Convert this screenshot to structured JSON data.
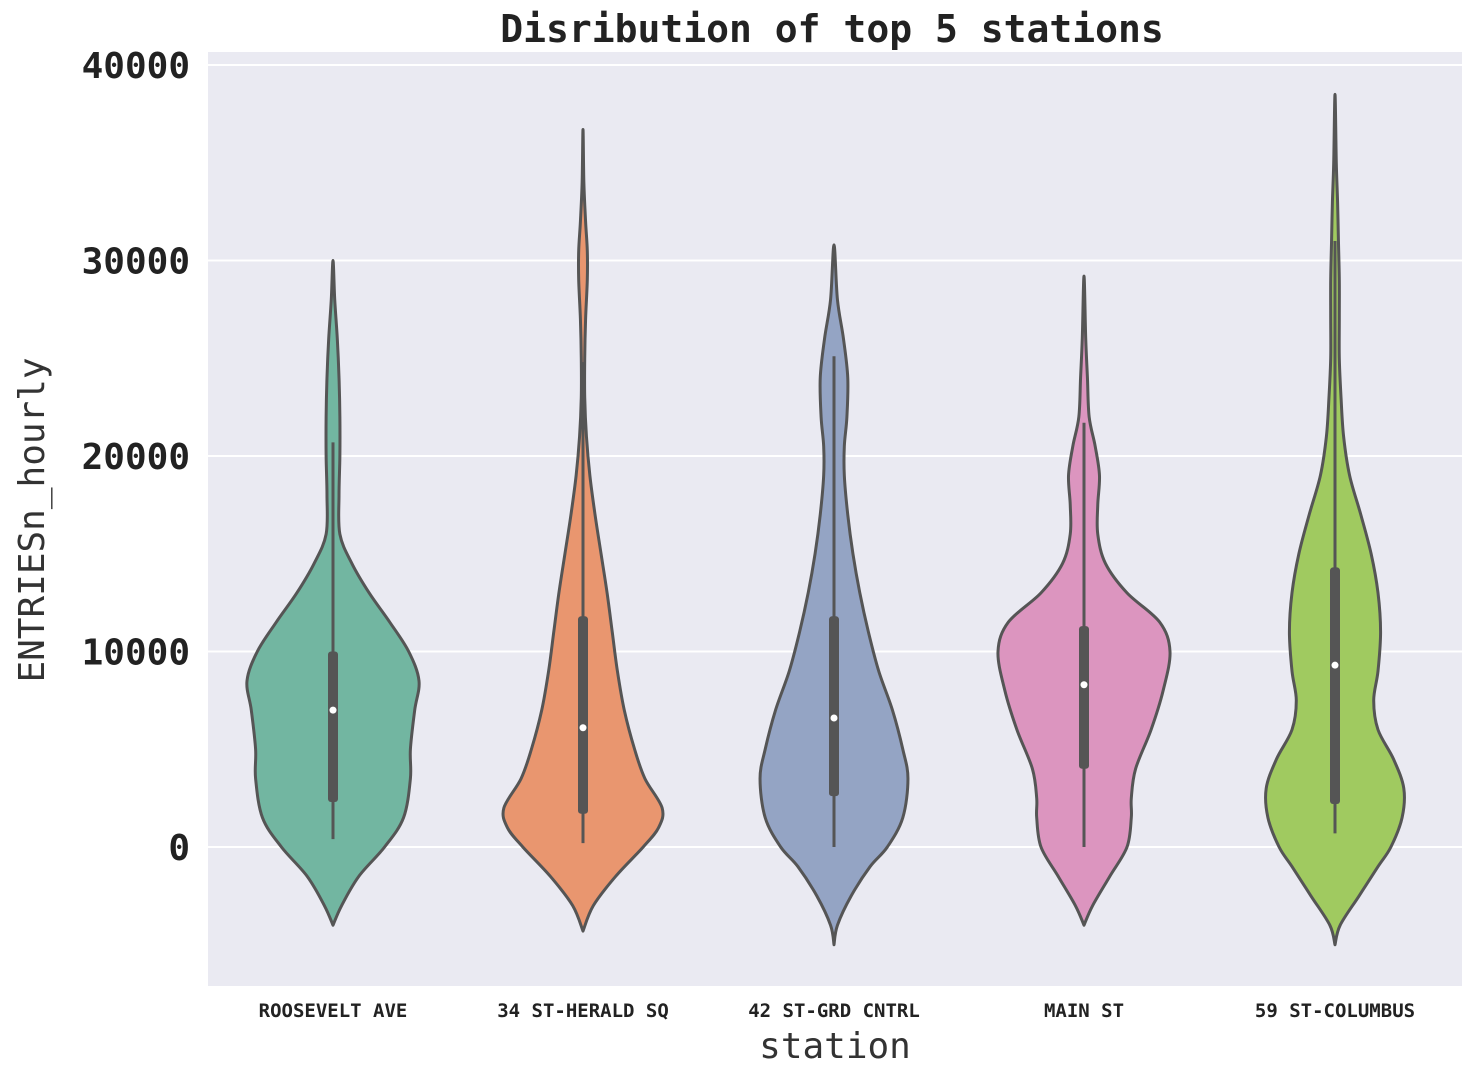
{
  "chart_data": {
    "type": "violin",
    "title": "Disribution of top 5 stations",
    "xlabel": "station",
    "ylabel": "ENTRIESn_hourly",
    "ylim": [
      -7000,
      40500
    ],
    "yticks": [
      0,
      10000,
      20000,
      30000,
      40000
    ],
    "grid": true,
    "categories": [
      "ROOSEVELT AVE",
      "34 ST-HERALD SQ",
      "42 ST-GRD CNTRL",
      "MAIN ST",
      "59 ST-COLUMBUS"
    ],
    "series": [
      {
        "category": "ROOSEVELT AVE",
        "color": "#72b6a1",
        "median": 7000,
        "q1": 2300,
        "q3": 10000,
        "whisker_low": 400,
        "whisker_high": 20700,
        "density": [
          [
            -4000,
            0.0
          ],
          [
            -3000,
            0.1
          ],
          [
            -1500,
            0.3
          ],
          [
            0,
            0.6
          ],
          [
            1500,
            0.82
          ],
          [
            3500,
            0.9
          ],
          [
            5000,
            0.9
          ],
          [
            7000,
            0.95
          ],
          [
            8500,
            1.0
          ],
          [
            10000,
            0.88
          ],
          [
            11500,
            0.66
          ],
          [
            13000,
            0.42
          ],
          [
            14500,
            0.22
          ],
          [
            16000,
            0.08
          ],
          [
            18000,
            0.07
          ],
          [
            20000,
            0.08
          ],
          [
            22000,
            0.08
          ],
          [
            24000,
            0.07
          ],
          [
            26000,
            0.05
          ],
          [
            28000,
            0.02
          ],
          [
            30000,
            0.0
          ]
        ]
      },
      {
        "category": "34 ST-HERALD SQ",
        "color": "#e9966f",
        "median": 6100,
        "q1": 1700,
        "q3": 11800,
        "whisker_low": 200,
        "whisker_high": 24800,
        "density": [
          [
            -4300,
            0.0
          ],
          [
            -3000,
            0.12
          ],
          [
            -1500,
            0.38
          ],
          [
            0,
            0.7
          ],
          [
            1000,
            0.88
          ],
          [
            2000,
            0.92
          ],
          [
            3500,
            0.72
          ],
          [
            5000,
            0.6
          ],
          [
            7000,
            0.48
          ],
          [
            9000,
            0.4
          ],
          [
            11000,
            0.34
          ],
          [
            13000,
            0.28
          ],
          [
            15000,
            0.21
          ],
          [
            17000,
            0.14
          ],
          [
            19000,
            0.08
          ],
          [
            21000,
            0.04
          ],
          [
            23000,
            0.02
          ],
          [
            25000,
            0.02
          ],
          [
            27000,
            0.03
          ],
          [
            29000,
            0.05
          ],
          [
            30500,
            0.05
          ],
          [
            32000,
            0.03
          ],
          [
            34000,
            0.01
          ],
          [
            36700,
            0.0
          ]
        ]
      },
      {
        "category": "42 ST-GRD CNTRL",
        "color": "#94a4c4",
        "median": 6600,
        "q1": 2600,
        "q3": 11800,
        "whisker_low": 0,
        "whisker_high": 25100,
        "density": [
          [
            -5000,
            0.0
          ],
          [
            -4000,
            0.04
          ],
          [
            -2500,
            0.2
          ],
          [
            -1000,
            0.42
          ],
          [
            0,
            0.62
          ],
          [
            1500,
            0.8
          ],
          [
            3500,
            0.86
          ],
          [
            5000,
            0.8
          ],
          [
            7000,
            0.68
          ],
          [
            9000,
            0.52
          ],
          [
            11000,
            0.4
          ],
          [
            13000,
            0.3
          ],
          [
            15000,
            0.22
          ],
          [
            17000,
            0.16
          ],
          [
            19000,
            0.12
          ],
          [
            20500,
            0.12
          ],
          [
            22000,
            0.15
          ],
          [
            24000,
            0.16
          ],
          [
            26000,
            0.11
          ],
          [
            28000,
            0.04
          ],
          [
            30800,
            0.0
          ]
        ]
      },
      {
        "category": "MAIN ST",
        "color": "#dc95bf",
        "median": 8300,
        "q1": 4000,
        "q3": 11300,
        "whisker_low": 0,
        "whisker_high": 21700,
        "density": [
          [
            -4000,
            0.0
          ],
          [
            -3000,
            0.1
          ],
          [
            -1500,
            0.3
          ],
          [
            0,
            0.5
          ],
          [
            1500,
            0.55
          ],
          [
            2500,
            0.55
          ],
          [
            4000,
            0.6
          ],
          [
            6000,
            0.78
          ],
          [
            8000,
            0.92
          ],
          [
            10000,
            1.0
          ],
          [
            11500,
            0.88
          ],
          [
            13000,
            0.5
          ],
          [
            14500,
            0.25
          ],
          [
            16000,
            0.16
          ],
          [
            17500,
            0.16
          ],
          [
            19000,
            0.18
          ],
          [
            20500,
            0.13
          ],
          [
            22000,
            0.06
          ],
          [
            24000,
            0.04
          ],
          [
            26000,
            0.02
          ],
          [
            29200,
            0.0
          ]
        ]
      },
      {
        "category": "59 ST-COLUMBUS",
        "color": "#a0ca60",
        "median": 9300,
        "q1": 2200,
        "q3": 14300,
        "whisker_low": 700,
        "whisker_high": 31000,
        "density": [
          [
            -5000,
            0.0
          ],
          [
            -4000,
            0.06
          ],
          [
            -2500,
            0.28
          ],
          [
            -1000,
            0.5
          ],
          [
            0,
            0.65
          ],
          [
            1500,
            0.78
          ],
          [
            3000,
            0.8
          ],
          [
            4500,
            0.68
          ],
          [
            6000,
            0.5
          ],
          [
            7500,
            0.45
          ],
          [
            9000,
            0.5
          ],
          [
            11000,
            0.53
          ],
          [
            13000,
            0.5
          ],
          [
            15000,
            0.42
          ],
          [
            17000,
            0.3
          ],
          [
            19000,
            0.17
          ],
          [
            21000,
            0.1
          ],
          [
            23000,
            0.07
          ],
          [
            25000,
            0.05
          ],
          [
            27000,
            0.05
          ],
          [
            29000,
            0.05
          ],
          [
            31000,
            0.04
          ],
          [
            33000,
            0.03
          ],
          [
            35000,
            0.015
          ],
          [
            38500,
            0.0
          ]
        ]
      }
    ]
  }
}
